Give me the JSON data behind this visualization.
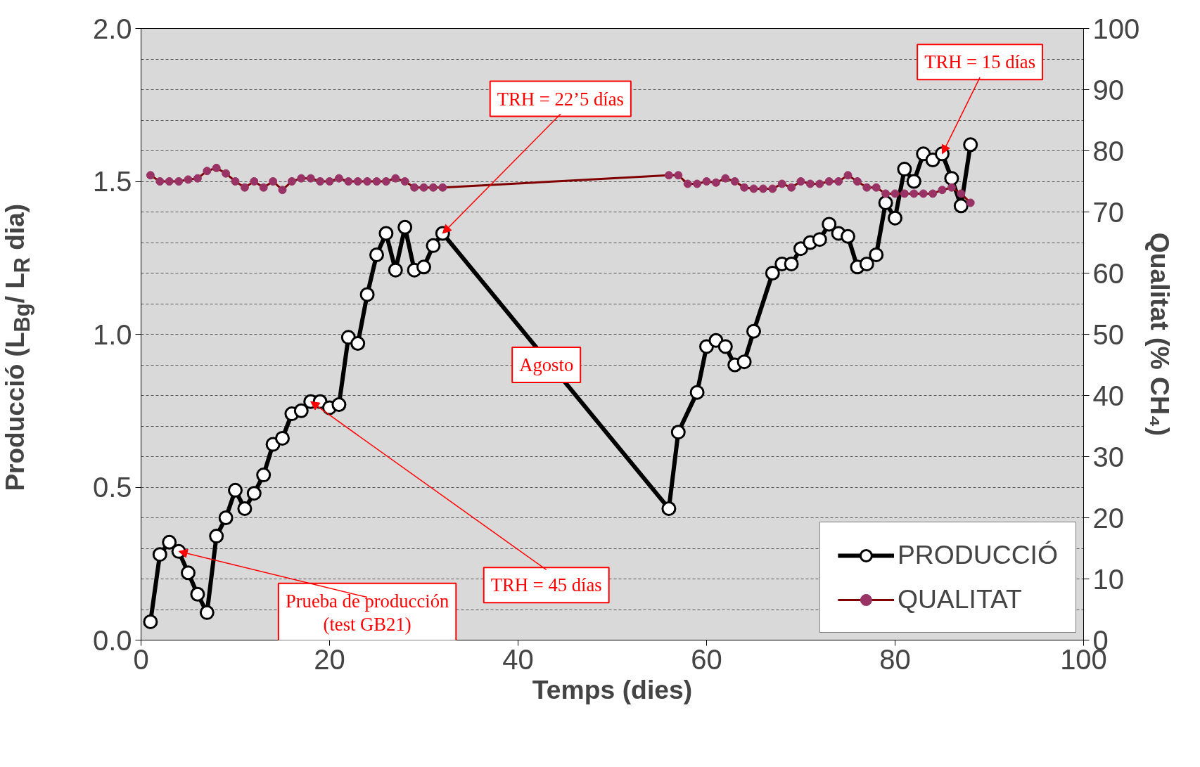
{
  "chart_data": {
    "type": "line",
    "xlabel": "Temps (dies)",
    "ylabel": "Producció (L$_{Bg}$/ L$_{R}$ dia)",
    "y2label": "Qualitat (% CH₄)",
    "xlim": [
      0,
      100
    ],
    "xticks": [
      0,
      20,
      40,
      60,
      80,
      100
    ],
    "ylim": [
      0,
      2.0
    ],
    "yticks": [
      {
        "value": 0,
        "label": "0.0"
      },
      {
        "value": 0.5,
        "label": "0.5"
      },
      {
        "value": 1.0,
        "label": "1.0"
      },
      {
        "value": 1.5,
        "label": "1.5"
      },
      {
        "value": 2.0,
        "label": "2.0"
      }
    ],
    "y2lim": [
      0,
      100
    ],
    "y2ticks": [
      0,
      10,
      20,
      30,
      40,
      50,
      60,
      70,
      80,
      90,
      100
    ],
    "grid": "y",
    "legend": "bottom right",
    "marker": "circle",
    "line_style": "solid",
    "series": [
      {
        "name": "PRODUCCIÓ",
        "color": "#000000",
        "x": [
          1,
          2,
          3,
          4,
          5,
          6,
          7,
          8,
          9,
          10,
          11,
          12,
          13,
          14,
          15,
          16,
          17,
          18,
          19,
          20,
          21,
          22,
          23,
          24,
          25,
          26,
          27,
          28,
          29,
          30,
          31,
          32,
          56,
          57,
          59,
          60,
          61,
          62,
          63,
          64,
          65,
          67,
          68,
          69,
          70,
          71,
          72,
          73,
          74,
          75,
          76,
          77,
          78,
          79,
          80,
          81,
          82,
          83,
          84,
          85,
          86,
          87,
          88
        ],
        "values": [
          0.06,
          0.28,
          0.32,
          0.29,
          0.22,
          0.15,
          0.09,
          0.34,
          0.4,
          0.49,
          0.43,
          0.48,
          0.54,
          0.64,
          0.66,
          0.74,
          0.75,
          0.78,
          0.78,
          0.76,
          0.77,
          0.99,
          0.97,
          1.13,
          1.26,
          1.33,
          1.21,
          1.35,
          1.21,
          1.22,
          1.29,
          1.33,
          0.43,
          0.68,
          0.81,
          0.96,
          0.98,
          0.96,
          0.9,
          0.91,
          1.01,
          1.2,
          1.23,
          1.23,
          1.28,
          1.3,
          1.31,
          1.36,
          1.33,
          1.32,
          1.22,
          1.23,
          1.26,
          1.43,
          1.38,
          1.54,
          1.5,
          1.59,
          1.57,
          1.59,
          1.51,
          1.42,
          1.62
        ]
      },
      {
        "name": "QUALITAT",
        "color": "#800000",
        "axis": "y2",
        "x": [
          1,
          2,
          3,
          4,
          5,
          6,
          7,
          8,
          9,
          10,
          11,
          12,
          13,
          14,
          15,
          16,
          17,
          18,
          19,
          20,
          21,
          22,
          23,
          24,
          25,
          26,
          27,
          28,
          29,
          30,
          31,
          32,
          56,
          57,
          58,
          59,
          60,
          61,
          62,
          63,
          64,
          65,
          66,
          67,
          68,
          69,
          70,
          71,
          72,
          73,
          74,
          75,
          76,
          77,
          78,
          79,
          80,
          81,
          82,
          83,
          84,
          85,
          86,
          87,
          88
        ],
        "values": [
          76,
          75,
          75,
          75,
          75.3,
          75.5,
          76.7,
          77.2,
          76.3,
          75,
          74,
          75,
          74,
          75,
          73.6,
          75,
          75.5,
          75.5,
          75,
          75,
          75.5,
          75,
          75,
          75,
          75,
          75,
          75.5,
          75,
          74,
          74,
          74,
          74,
          76,
          76,
          74.6,
          74.6,
          75,
          74.8,
          75.5,
          75,
          74,
          73.8,
          73.8,
          73.8,
          74.6,
          74,
          75,
          74.6,
          74.6,
          75,
          75,
          76,
          75,
          74,
          74,
          73,
          73,
          73,
          73,
          73,
          73,
          73.6,
          74,
          73,
          71.5
        ]
      }
    ],
    "annotations": [
      {
        "text": "TRH = 22’5 días",
        "x": 32,
        "y": 1.33
      },
      {
        "text": "TRH = 15 días",
        "x": 85,
        "y": 1.59
      },
      "Agosto",
      {
        "text": "TRH = 45 días",
        "x": 18,
        "y": 0.78
      },
      {
        "text": "Prueba de producción\n(test GB21)",
        "x": 4,
        "y": 0.29
      }
    ]
  }
}
